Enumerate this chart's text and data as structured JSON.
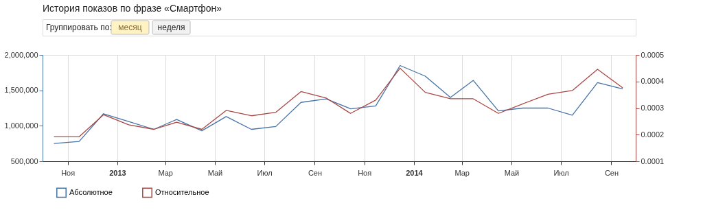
{
  "chart_data": {
    "type": "line",
    "title": "История показов по фразе «Смартфон»",
    "annotations": [
      "Группировать по:",
      "месяц",
      "неделя"
    ],
    "x": [
      "2012-10-15",
      "2012-11-15",
      "2012-12-15",
      "2013-01-15",
      "2013-02-15",
      "2013-03-15",
      "2013-04-15",
      "2013-05-15",
      "2013-06-15",
      "2013-07-15",
      "2013-08-15",
      "2013-09-15",
      "2013-10-15",
      "2013-11-15",
      "2013-12-15",
      "2014-01-15",
      "2014-02-15",
      "2014-03-15",
      "2014-04-15",
      "2014-05-15",
      "2014-06-15",
      "2014-07-15",
      "2014-08-15",
      "2014-09-15"
    ],
    "xlim": [
      "2012-10-01",
      "2014-10-01"
    ],
    "xticks": [
      {
        "value": "2012-11-01",
        "label": "Ноя"
      },
      {
        "value": "2013-01-01",
        "label": "2013"
      },
      {
        "value": "2013-03-01",
        "label": "Мар"
      },
      {
        "value": "2013-05-01",
        "label": "Май"
      },
      {
        "value": "2013-07-01",
        "label": "Июл"
      },
      {
        "value": "2013-09-01",
        "label": "Сен"
      },
      {
        "value": "2013-11-01",
        "label": "Ноя"
      },
      {
        "value": "2014-01-01",
        "label": "2014"
      },
      {
        "value": "2014-03-01",
        "label": "Мар"
      },
      {
        "value": "2014-05-01",
        "label": "Май"
      },
      {
        "value": "2014-07-01",
        "label": "Июл"
      },
      {
        "value": "2014-09-01",
        "label": "Сен"
      }
    ],
    "ylim": [
      500000,
      2000000
    ],
    "yticks": [
      {
        "value": 500000,
        "label": "500,000"
      },
      {
        "value": 1000000,
        "label": "1,000,000"
      },
      {
        "value": 1500000,
        "label": "1,500,000"
      },
      {
        "value": 2000000,
        "label": "2,000,000"
      }
    ],
    "y2lim": [
      0.0001,
      0.0005
    ],
    "y2ticks": [
      0.0001,
      0.0002,
      0.0003,
      0.0004,
      0.0005
    ],
    "grid": "x",
    "legend": "bottom left",
    "marker": "none",
    "line_style": "solid",
    "series": [
      {
        "name": "Абсолютное",
        "color": "#4572a7",
        "values": [
          750000,
          780000,
          1170000,
          1060000,
          950000,
          1090000,
          930000,
          1130000,
          950000,
          990000,
          1330000,
          1380000,
          1240000,
          1280000,
          1850000,
          1700000,
          1400000,
          1640000,
          1210000,
          1250000,
          1250000,
          1150000,
          1610000,
          1520000
        ]
      },
      {
        "name": "Относительное",
        "color": "#aa4643",
        "axis": "y2",
        "values": [
          0.000192,
          0.000192,
          0.000275,
          0.000237,
          0.00022,
          0.000247,
          0.00022,
          0.000291,
          0.000271,
          0.000284,
          0.000362,
          0.000338,
          0.00028,
          0.00033,
          0.00045,
          0.000359,
          0.000335,
          0.000335,
          0.00028,
          0.000316,
          0.000352,
          0.000366,
          0.000446,
          0.000376
        ]
      }
    ]
  }
}
